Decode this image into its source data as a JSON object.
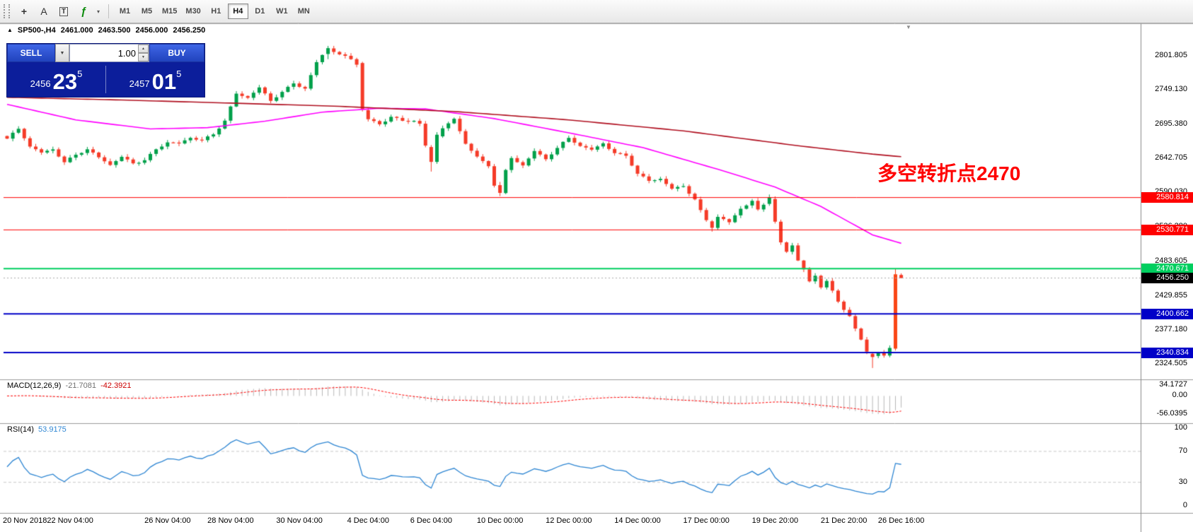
{
  "toolbar": {
    "tools": [
      {
        "name": "crosshair",
        "glyph": "+"
      },
      {
        "name": "text-annotation",
        "glyph": "A"
      },
      {
        "name": "text-label",
        "glyph": "T"
      },
      {
        "name": "indicators",
        "glyph": "ƒ"
      }
    ],
    "indicator_dropdown_glyph": "▾",
    "timeframes": [
      {
        "label": "M1"
      },
      {
        "label": "M5"
      },
      {
        "label": "M15"
      },
      {
        "label": "M30"
      },
      {
        "label": "H1"
      },
      {
        "label": "H4"
      },
      {
        "label": "D1"
      },
      {
        "label": "W1"
      },
      {
        "label": "MN"
      }
    ],
    "active_timeframe": "H4"
  },
  "chart": {
    "symbol_line": {
      "marker": "▲",
      "symbol": "SP500-,H4",
      "open": "2461.000",
      "high": "2463.500",
      "low": "2456.000",
      "close": "2456.250"
    },
    "trade_panel": {
      "sell_label": "SELL",
      "buy_label": "BUY",
      "volume": "1.00",
      "dropdown_glyph": "▼",
      "spin_up_glyph": "▲",
      "spin_down_glyph": "▼",
      "sell_price": {
        "small": "2456",
        "big": "23",
        "sup": "5"
      },
      "buy_price": {
        "small": "2457",
        "big": "01",
        "sup": "5"
      }
    },
    "annotation": {
      "text": "多空转折点2470",
      "color": "#ff0000"
    },
    "shift_marker_glyph": "▼",
    "price_axis_ticks": [
      "2801.805",
      "2749.130",
      "2695.380",
      "2642.705",
      "2590.030",
      "2536.280",
      "2483.605",
      "2429.855",
      "2377.180",
      "2324.505"
    ],
    "current_price_badge": "2456.250",
    "time_axis": [
      "20 Nov 2018",
      "22 Nov 04:00",
      "26 Nov 04:00",
      "28 Nov 04:00",
      "30 Nov 04:00",
      "4 Dec 04:00",
      "6 Dec 04:00",
      "10 Dec 00:00",
      "12 Dec 00:00",
      "14 Dec 00:00",
      "17 Dec 00:00",
      "19 Dec 20:00",
      "21 Dec 20:00",
      "26 Dec 16:00"
    ]
  },
  "indicators": {
    "macd": {
      "label": "MACD(12,26,9)",
      "value_main": "-21.7081",
      "value_signal": "-42.3921",
      "scale": [
        "34.1727",
        "0.00",
        "-56.0395"
      ]
    },
    "rsi": {
      "label": "RSI(14)",
      "value": "53.9175",
      "scale": [
        "100",
        "70",
        "30",
        "0"
      ]
    }
  },
  "chart_data": {
    "type": "candlestick",
    "symbol": "SP500-",
    "timeframe": "H4",
    "bars": 157,
    "price_range": {
      "min_tick": 2324.505,
      "max_tick": 2801.805
    },
    "up_color": "#00a04a",
    "down_color": "#f53b28",
    "close_anchors": [
      [
        0,
        2672
      ],
      [
        2,
        2685
      ],
      [
        4,
        2660
      ],
      [
        6,
        2648
      ],
      [
        8,
        2658
      ],
      [
        10,
        2636
      ],
      [
        12,
        2648
      ],
      [
        14,
        2656
      ],
      [
        16,
        2640
      ],
      [
        18,
        2632
      ],
      [
        20,
        2642
      ],
      [
        22,
        2636
      ],
      [
        24,
        2640
      ],
      [
        26,
        2655
      ],
      [
        28,
        2667
      ],
      [
        30,
        2661
      ],
      [
        32,
        2674
      ],
      [
        34,
        2669
      ],
      [
        36,
        2680
      ],
      [
        38,
        2702
      ],
      [
        40,
        2740
      ],
      [
        42,
        2736
      ],
      [
        44,
        2748
      ],
      [
        46,
        2731
      ],
      [
        48,
        2745
      ],
      [
        50,
        2758
      ],
      [
        52,
        2752
      ],
      [
        54,
        2788
      ],
      [
        56,
        2812
      ],
      [
        58,
        2800
      ],
      [
        60,
        2795
      ],
      [
        61,
        2789
      ],
      [
        62,
        2718
      ],
      [
        63,
        2702
      ],
      [
        65,
        2696
      ],
      [
        67,
        2706
      ],
      [
        69,
        2697
      ],
      [
        71,
        2700
      ],
      [
        72,
        2694
      ],
      [
        73,
        2659
      ],
      [
        74,
        2636
      ],
      [
        75,
        2678
      ],
      [
        76,
        2691
      ],
      [
        78,
        2702
      ],
      [
        80,
        2666
      ],
      [
        82,
        2642
      ],
      [
        83,
        2634
      ],
      [
        84,
        2628
      ],
      [
        85,
        2600
      ],
      [
        86,
        2588
      ],
      [
        87,
        2622
      ],
      [
        88,
        2641
      ],
      [
        90,
        2634
      ],
      [
        92,
        2652
      ],
      [
        94,
        2641
      ],
      [
        96,
        2656
      ],
      [
        98,
        2671
      ],
      [
        100,
        2662
      ],
      [
        102,
        2654
      ],
      [
        104,
        2668
      ],
      [
        106,
        2649
      ],
      [
        108,
        2645
      ],
      [
        110,
        2617
      ],
      [
        112,
        2604
      ],
      [
        114,
        2612
      ],
      [
        116,
        2594
      ],
      [
        118,
        2601
      ],
      [
        120,
        2578
      ],
      [
        121,
        2559
      ],
      [
        122,
        2544
      ],
      [
        123,
        2534
      ],
      [
        124,
        2551
      ],
      [
        126,
        2540
      ],
      [
        128,
        2566
      ],
      [
        130,
        2576
      ],
      [
        131,
        2562
      ],
      [
        132,
        2571
      ],
      [
        133,
        2581
      ],
      [
        134,
        2544
      ],
      [
        135,
        2509
      ],
      [
        136,
        2494
      ],
      [
        137,
        2506
      ],
      [
        138,
        2484
      ],
      [
        139,
        2469
      ],
      [
        140,
        2449
      ],
      [
        141,
        2459
      ],
      [
        142,
        2444
      ],
      [
        143,
        2455
      ],
      [
        144,
        2438
      ],
      [
        145,
        2419
      ],
      [
        146,
        2407
      ],
      [
        147,
        2399
      ],
      [
        148,
        2379
      ],
      [
        149,
        2359
      ],
      [
        150,
        2339
      ],
      [
        151,
        2334
      ],
      [
        152,
        2342
      ],
      [
        153,
        2337
      ],
      [
        154,
        2347
      ],
      [
        155,
        2462
      ],
      [
        156,
        2456.25
      ]
    ],
    "candle_overrides": {
      "56": [
        2803,
        2815.5,
        2795,
        2812
      ],
      "62": [
        2789,
        2791,
        2714,
        2718
      ],
      "74": [
        2659,
        2662,
        2621,
        2636
      ],
      "75": [
        2636,
        2682,
        2633,
        2678
      ],
      "86": [
        2600,
        2605,
        2583,
        2588
      ],
      "123": [
        2544,
        2546,
        2528,
        2534
      ],
      "133": [
        2571,
        2585.5,
        2568,
        2581
      ],
      "151": [
        2339,
        2342,
        2317,
        2334
      ],
      "155": [
        2347,
        2470.7,
        2344,
        2462,
        "#fa4616"
      ],
      "156": [
        2461,
        2463.5,
        2456,
        2456.25
      ]
    },
    "ma_fast": {
      "name": "MA fast",
      "color": "#ff00ff",
      "points": [
        [
          0,
          2725
        ],
        [
          12,
          2701
        ],
        [
          25,
          2687
        ],
        [
          35,
          2689
        ],
        [
          45,
          2699
        ],
        [
          55,
          2713
        ],
        [
          65,
          2719
        ],
        [
          73,
          2718
        ],
        [
          85,
          2703
        ],
        [
          98,
          2681
        ],
        [
          111,
          2658
        ],
        [
          125,
          2622
        ],
        [
          134,
          2597
        ],
        [
          142,
          2567
        ],
        [
          151,
          2523
        ],
        [
          156,
          2510
        ]
      ]
    },
    "ma_slow": {
      "name": "MA slow",
      "color": "#b01020",
      "points": [
        [
          0,
          2736
        ],
        [
          19,
          2732
        ],
        [
          39,
          2727
        ],
        [
          58,
          2722
        ],
        [
          78,
          2714
        ],
        [
          98,
          2701
        ],
        [
          118,
          2684
        ],
        [
          138,
          2661
        ],
        [
          151,
          2648
        ],
        [
          156,
          2644
        ]
      ]
    },
    "levels": [
      {
        "price": 2580.814,
        "label": "2580.814",
        "color": "#ff0000",
        "width": 1
      },
      {
        "price": 2530.771,
        "label": "2530.771",
        "color": "#ff0000",
        "width": 1
      },
      {
        "price": 2470.671,
        "label": "2470.671",
        "color": "#00cf5f",
        "width": 2
      },
      {
        "price": 2400.662,
        "label": "2400.662",
        "color": "#0000c8",
        "width": 2
      },
      {
        "price": 2340.834,
        "label": "2340.834",
        "color": "#0000c8",
        "width": 2
      }
    ],
    "current_price": {
      "value": 2456.25,
      "label": "2456.250",
      "badge_color": "#000000"
    },
    "tick_bars": [
      0,
      11,
      28,
      39,
      51,
      63,
      74,
      86,
      98,
      110,
      122,
      134,
      146,
      156
    ],
    "macd": {
      "params": [
        12,
        26,
        9
      ],
      "histogram_color": "#b8b8b8",
      "signal_color": "#ff0000",
      "scale_max": 34.1727,
      "scale_min": -56.0395
    },
    "rsi": {
      "params": [
        14
      ],
      "color": "#2e86d3",
      "levels": [
        70,
        30
      ],
      "scale_max": 100,
      "scale_min": 0
    }
  }
}
